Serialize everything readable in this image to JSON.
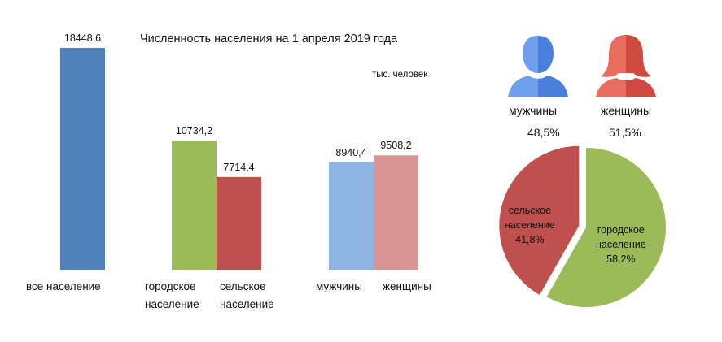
{
  "chart_data": [
    {
      "type": "bar",
      "title": "Численность населения на 1 апреля 2019 года",
      "unit_label": "тыс. человек",
      "ylim": [
        0,
        20000
      ],
      "bars": [
        {
          "category": "все население",
          "value": 18448.6,
          "value_label": "18448,6",
          "color": "#4f81bd"
        },
        {
          "category": "городское население",
          "value": 10734.2,
          "value_label": "10734,2",
          "color": "#9bbb59"
        },
        {
          "category": "сельское население",
          "value": 7714.4,
          "value_label": "7714,4",
          "color": "#c0504d"
        },
        {
          "category": "мужчины",
          "value": 8940.4,
          "value_label": "8940,4",
          "color": "#8eb4e3"
        },
        {
          "category": "женщины",
          "value": 9508.2,
          "value_label": "9508,2",
          "color": "#d99594"
        }
      ],
      "category_lines": {
        "all": [
          "все население"
        ],
        "urban": [
          "городское",
          "население"
        ],
        "rural": [
          "сельское",
          "население"
        ],
        "men": [
          "мужчины"
        ],
        "women": [
          "женщины"
        ]
      }
    },
    {
      "type": "pie",
      "slices": [
        {
          "name_lines": [
            "сельское",
            "население"
          ],
          "value": 41.8,
          "value_label": "41,8%",
          "color": "#c0504d"
        },
        {
          "name_lines": [
            "городское",
            "население"
          ],
          "value": 58.2,
          "value_label": "58,2%",
          "color": "#9bbb59"
        }
      ]
    }
  ],
  "gender": {
    "men": {
      "label": "мужчины",
      "pct": "48,5%",
      "icon": "male-silhouette-icon",
      "color": "#5b8fe0"
    },
    "women": {
      "label": "женщины",
      "pct": "51,5%",
      "icon": "female-silhouette-icon",
      "color": "#e05a4f"
    }
  }
}
